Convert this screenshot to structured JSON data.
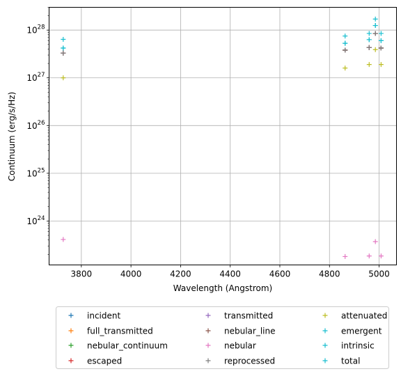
{
  "chart_data": {
    "type": "scatter",
    "marker": "+",
    "xlabel": "Wavelength (Angstrom)",
    "ylabel": "Continuum (erg/s/Hz)",
    "xlim": [
      3670,
      5070
    ],
    "ylim": [
      1.2e+23,
      3e+28
    ],
    "yscale": "log",
    "grid": true,
    "legend_placement": "below",
    "legend_columns": 3,
    "x_ticks": [
      3800,
      4000,
      4200,
      4400,
      4600,
      4800,
      5000
    ],
    "x_tick_labels": [
      "3800",
      "4000",
      "4200",
      "4400",
      "4600",
      "4800",
      "5000"
    ],
    "y_ticks": [
      {
        "value": 1e+24,
        "base": "10",
        "exp": "24"
      },
      {
        "value": 1e+25,
        "base": "10",
        "exp": "25"
      },
      {
        "value": 1e+26,
        "base": "10",
        "exp": "26"
      },
      {
        "value": 1e+27,
        "base": "10",
        "exp": "27"
      },
      {
        "value": 1e+28,
        "base": "10",
        "exp": "28"
      }
    ],
    "series": [
      {
        "name": "incident",
        "color": "#1f77b4",
        "points": [
          [
            3727,
            3.3e+27
          ],
          [
            4863,
            3.8e+27
          ],
          [
            4960,
            4.3e+27
          ],
          [
            4985,
            8.5e+27
          ],
          [
            5008,
            4.2e+27
          ]
        ]
      },
      {
        "name": "full_transmitted",
        "color": "#ff7f0e",
        "points": [
          [
            3727,
            3.3e+27
          ],
          [
            4863,
            3.8e+27
          ],
          [
            4960,
            4.3e+27
          ],
          [
            4985,
            8.5e+27
          ],
          [
            5008,
            4.2e+27
          ]
        ]
      },
      {
        "name": "nebular_continuum",
        "color": "#2ca02c",
        "points": [
          [
            3727,
            3.3e+27
          ],
          [
            4863,
            3.8e+27
          ],
          [
            4960,
            4.3e+27
          ],
          [
            4985,
            8.5e+27
          ],
          [
            5008,
            4.2e+27
          ]
        ]
      },
      {
        "name": "escaped",
        "color": "#d62728",
        "points": [
          [
            3727,
            3.3e+27
          ],
          [
            4863,
            3.8e+27
          ],
          [
            4960,
            4.3e+27
          ],
          [
            4985,
            8.5e+27
          ],
          [
            5008,
            4.2e+27
          ]
        ]
      },
      {
        "name": "transmitted",
        "color": "#9467bd",
        "points": [
          [
            3727,
            3.3e+27
          ],
          [
            4863,
            3.8e+27
          ],
          [
            4960,
            4.3e+27
          ],
          [
            4985,
            8.5e+27
          ],
          [
            5008,
            4.2e+27
          ]
        ]
      },
      {
        "name": "nebular_line",
        "color": "#8c564b",
        "points": [
          [
            3727,
            3.3e+27
          ],
          [
            4863,
            3.8e+27
          ],
          [
            4960,
            4.3e+27
          ],
          [
            4985,
            8.5e+27
          ],
          [
            5008,
            4.2e+27
          ]
        ]
      },
      {
        "name": "nebular",
        "color": "#e377c2",
        "points": [
          [
            3727,
            4.1e+23
          ],
          [
            4863,
            1.8e+23
          ],
          [
            4960,
            1.85e+23
          ],
          [
            4985,
            3.7e+23
          ],
          [
            5008,
            1.85e+23
          ]
        ]
      },
      {
        "name": "reprocessed",
        "color": "#7f7f7f",
        "points": [
          [
            3727,
            3.3e+27
          ],
          [
            4863,
            3.8e+27
          ],
          [
            4960,
            4.3e+27
          ],
          [
            4985,
            8.5e+27
          ],
          [
            5008,
            4.2e+27
          ]
        ]
      },
      {
        "name": "attenuated",
        "color": "#bcbd22",
        "points": [
          [
            3727,
            1e+27
          ],
          [
            4863,
            1.6e+27
          ],
          [
            4960,
            1.9e+27
          ],
          [
            4985,
            3.9e+27
          ],
          [
            5008,
            1.9e+27
          ]
        ]
      },
      {
        "name": "emergent",
        "color": "#17becf",
        "points": [
          [
            3727,
            4.2e+27
          ],
          [
            4863,
            5.3e+27
          ],
          [
            4960,
            6.3e+27
          ],
          [
            4985,
            1.25e+28
          ],
          [
            5008,
            6e+27
          ]
        ]
      },
      {
        "name": "intrinsic",
        "color": "#17becf",
        "points": [
          [
            3727,
            6.4e+27
          ],
          [
            4863,
            7.5e+27
          ],
          [
            4960,
            8.5e+27
          ],
          [
            4985,
            1.7e+28
          ],
          [
            5008,
            8.5e+27
          ]
        ]
      },
      {
        "name": "total",
        "color": "#17becf",
        "points": [
          [
            3727,
            4.2e+27
          ],
          [
            4863,
            5.3e+27
          ],
          [
            4960,
            6.3e+27
          ],
          [
            4985,
            1.25e+28
          ],
          [
            5008,
            6e+27
          ]
        ]
      }
    ]
  }
}
